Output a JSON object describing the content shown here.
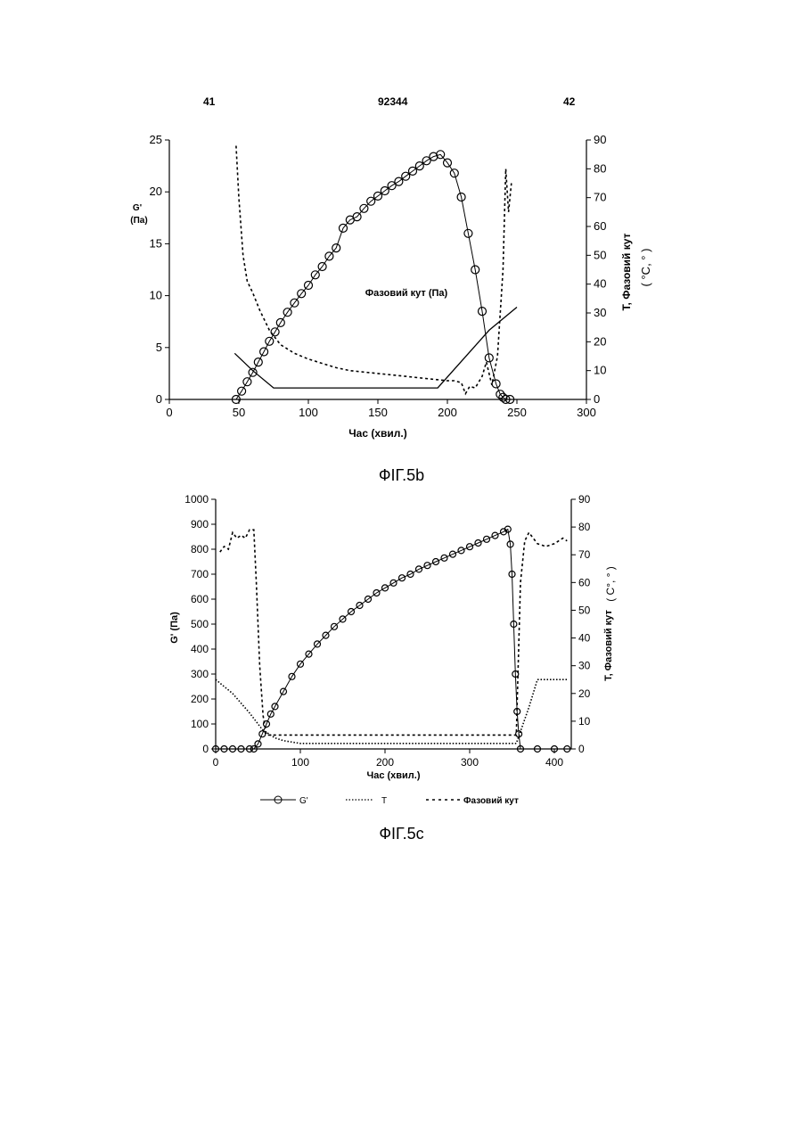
{
  "header": {
    "left": "41",
    "center": "92344",
    "right": "42"
  },
  "figures": [
    {
      "caption": "ФІГ.5b"
    },
    {
      "caption": "ФІГ.5c"
    }
  ],
  "chart_data": [
    {
      "type": "scatter",
      "title": "",
      "xlabel": "Час (хвил.)",
      "ylabel": "G' (Па)",
      "ylabel_parts": [
        "G'",
        "(Па)"
      ],
      "y2label": "T, Фазовий кут (°C, °)",
      "y2label_parts": [
        "T,  Фазовий кут",
        "( °C,  ° )"
      ],
      "annotation": "Фазовий кут  (Па)",
      "xlim": [
        0,
        300
      ],
      "ylim": [
        0,
        25
      ],
      "y2lim": [
        0,
        90
      ],
      "xticks": [
        "0",
        "50",
        "100",
        "150",
        "200",
        "250",
        "300"
      ],
      "yticks": [
        "0",
        "5",
        "10",
        "15",
        "20",
        "25"
      ],
      "y2ticks": [
        "0",
        "10",
        "20",
        "30",
        "40",
        "50",
        "60",
        "70",
        "80",
        "90"
      ],
      "series": [
        {
          "key": "G",
          "axis": "left",
          "style": "circles",
          "x": [
            48,
            52,
            56,
            60,
            64,
            68,
            72,
            76,
            80,
            85,
            90,
            95,
            100,
            105,
            110,
            115,
            120,
            125,
            130,
            135,
            140,
            145,
            150,
            155,
            160,
            165,
            170,
            175,
            180,
            185,
            190,
            195,
            200,
            205,
            210,
            215,
            220,
            225,
            230,
            235,
            238,
            240,
            242,
            245
          ],
          "y": [
            0,
            0.8,
            1.7,
            2.6,
            3.6,
            4.6,
            5.6,
            6.5,
            7.4,
            8.4,
            9.3,
            10.2,
            11,
            12,
            12.8,
            13.8,
            14.6,
            16.5,
            17.3,
            17.6,
            18.4,
            19.1,
            19.6,
            20.1,
            20.6,
            21,
            21.5,
            22,
            22.5,
            23,
            23.4,
            23.6,
            22.8,
            21.8,
            19.5,
            16,
            12.5,
            8.5,
            4,
            1.5,
            0.5,
            0.2,
            0,
            0
          ]
        },
        {
          "key": "T",
          "axis": "right",
          "style": "solid",
          "x": [
            47,
            60,
            75,
            100,
            150,
            193,
            230,
            250
          ],
          "y": [
            16,
            10,
            4,
            4,
            4,
            4,
            24,
            32
          ]
        },
        {
          "key": "phase",
          "axis": "right",
          "style": "dashed",
          "x": [
            48,
            50,
            53,
            56,
            60,
            65,
            72,
            80,
            90,
            100,
            110,
            120,
            130,
            140,
            150,
            160,
            170,
            180,
            190,
            200,
            205,
            210,
            213,
            216,
            220,
            225,
            228,
            232,
            236,
            240,
            242,
            244,
            246
          ],
          "y": [
            88,
            70,
            50,
            41,
            37,
            31,
            24,
            19,
            16,
            14,
            12.5,
            11,
            10,
            9.5,
            9,
            8.5,
            8,
            7.5,
            7,
            6.5,
            6.5,
            5.8,
            2,
            4.5,
            4,
            8,
            13,
            5,
            15,
            45,
            80,
            65,
            75
          ]
        }
      ]
    },
    {
      "type": "scatter",
      "title": "",
      "xlabel": "Час (хвил.)",
      "ylabel": "G' (Па)",
      "y2label": "T, Фазовий кут (C°, °)",
      "y2label_parts": [
        "T, Фазовий кут",
        "( C°,  ° )"
      ],
      "xlim": [
        0,
        420
      ],
      "ylim": [
        0,
        1000
      ],
      "y2lim": [
        0,
        90
      ],
      "xticks": [
        "0",
        "100",
        "200",
        "300",
        "400"
      ],
      "yticks": [
        "0",
        "100",
        "200",
        "300",
        "400",
        "500",
        "600",
        "700",
        "800",
        "900",
        "1000"
      ],
      "y2ticks": [
        "0",
        "10",
        "20",
        "30",
        "40",
        "50",
        "60",
        "70",
        "80",
        "90"
      ],
      "legend": [
        "G'",
        "T",
        "Фазовий кут"
      ],
      "legend_position": "bottom",
      "series": [
        {
          "key": "G",
          "axis": "left",
          "style": "circles",
          "x": [
            0,
            10,
            20,
            30,
            40,
            45,
            50,
            55,
            60,
            65,
            70,
            80,
            90,
            100,
            110,
            120,
            130,
            140,
            150,
            160,
            170,
            180,
            190,
            200,
            210,
            220,
            230,
            240,
            250,
            260,
            270,
            280,
            290,
            300,
            310,
            320,
            330,
            340,
            345,
            348,
            350,
            352,
            354,
            356,
            358,
            360,
            380,
            400,
            415
          ],
          "y": [
            0,
            0,
            0,
            0,
            0,
            0,
            20,
            60,
            100,
            140,
            170,
            230,
            290,
            340,
            380,
            420,
            455,
            490,
            520,
            550,
            575,
            600,
            625,
            645,
            665,
            685,
            700,
            720,
            735,
            750,
            765,
            780,
            795,
            810,
            825,
            840,
            855,
            870,
            880,
            820,
            700,
            500,
            300,
            150,
            60,
            0,
            0,
            0,
            0
          ]
        },
        {
          "key": "T",
          "axis": "right",
          "style": "dotted",
          "x": [
            0,
            20,
            40,
            55,
            70,
            80,
            100,
            200,
            300,
            345,
            355,
            370,
            380,
            415
          ],
          "y": [
            25,
            20,
            13,
            7,
            4,
            3,
            2,
            2,
            2,
            2,
            2,
            15,
            25,
            25
          ]
        },
        {
          "key": "phase",
          "axis": "right",
          "style": "dashed",
          "x": [
            5,
            10,
            15,
            20,
            25,
            30,
            35,
            40,
            45,
            48,
            52,
            56,
            60,
            340,
            350,
            355,
            360,
            365,
            370,
            380,
            390,
            400,
            410,
            415
          ],
          "y": [
            71,
            73,
            72,
            78,
            76,
            77,
            76,
            79,
            79,
            60,
            30,
            12,
            5,
            5,
            5,
            5,
            60,
            75,
            78,
            74,
            73,
            74,
            76,
            75
          ]
        }
      ]
    }
  ]
}
